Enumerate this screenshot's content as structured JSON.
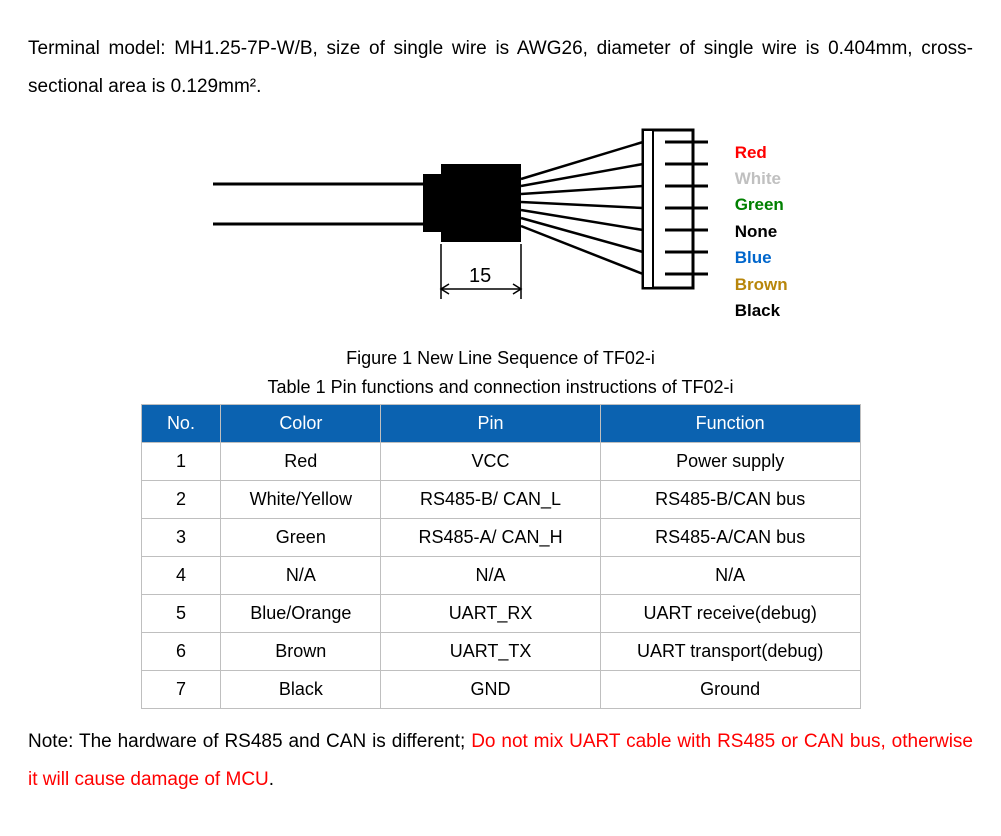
{
  "intro": "Terminal model: MH1.25-7P-W/B, size of single wire is AWG26, diameter of single wire is 0.404mm, cross-sectional area is 0.129mm².",
  "diagram": {
    "dimension_label": "15",
    "wire_labels": [
      {
        "text": "Red",
        "color": "#ff0000"
      },
      {
        "text": "White",
        "color": "#c0c0c0"
      },
      {
        "text": "Green",
        "color": "#008000"
      },
      {
        "text": "None",
        "color": "#000000"
      },
      {
        "text": "Blue",
        "color": "#0066cc"
      },
      {
        "text": "Brown",
        "color": "#b8860b"
      },
      {
        "text": "Black",
        "color": "#000000"
      }
    ]
  },
  "figure_caption": "Figure 1 New Line Sequence of TF02-i",
  "table_caption": "Table 1 Pin functions and connection instructions of TF02-i",
  "table": {
    "header_bg": "#0b62b0",
    "header_fg": "#ffffff",
    "border_color": "#bfbfbf",
    "columns": [
      "No.",
      "Color",
      "Pin",
      "Function"
    ],
    "rows": [
      [
        "1",
        "Red",
        "VCC",
        "Power supply"
      ],
      [
        "2",
        "White/Yellow",
        "RS485-B/ CAN_L",
        "RS485-B/CAN bus"
      ],
      [
        "3",
        "Green",
        "RS485-A/ CAN_H",
        "RS485-A/CAN bus"
      ],
      [
        "4",
        "N/A",
        "N/A",
        "N/A"
      ],
      [
        "5",
        "Blue/Orange",
        "UART_RX",
        "UART receive(debug)"
      ],
      [
        "6",
        "Brown",
        "UART_TX",
        "UART transport(debug)"
      ],
      [
        "7",
        "Black",
        "GND",
        "Ground"
      ]
    ]
  },
  "note_prefix": "Note: The hardware of RS485 and CAN is different; ",
  "note_red": "Do not mix UART cable with RS485 or CAN bus, otherwise it will cause damage of MCU",
  "note_suffix": "."
}
